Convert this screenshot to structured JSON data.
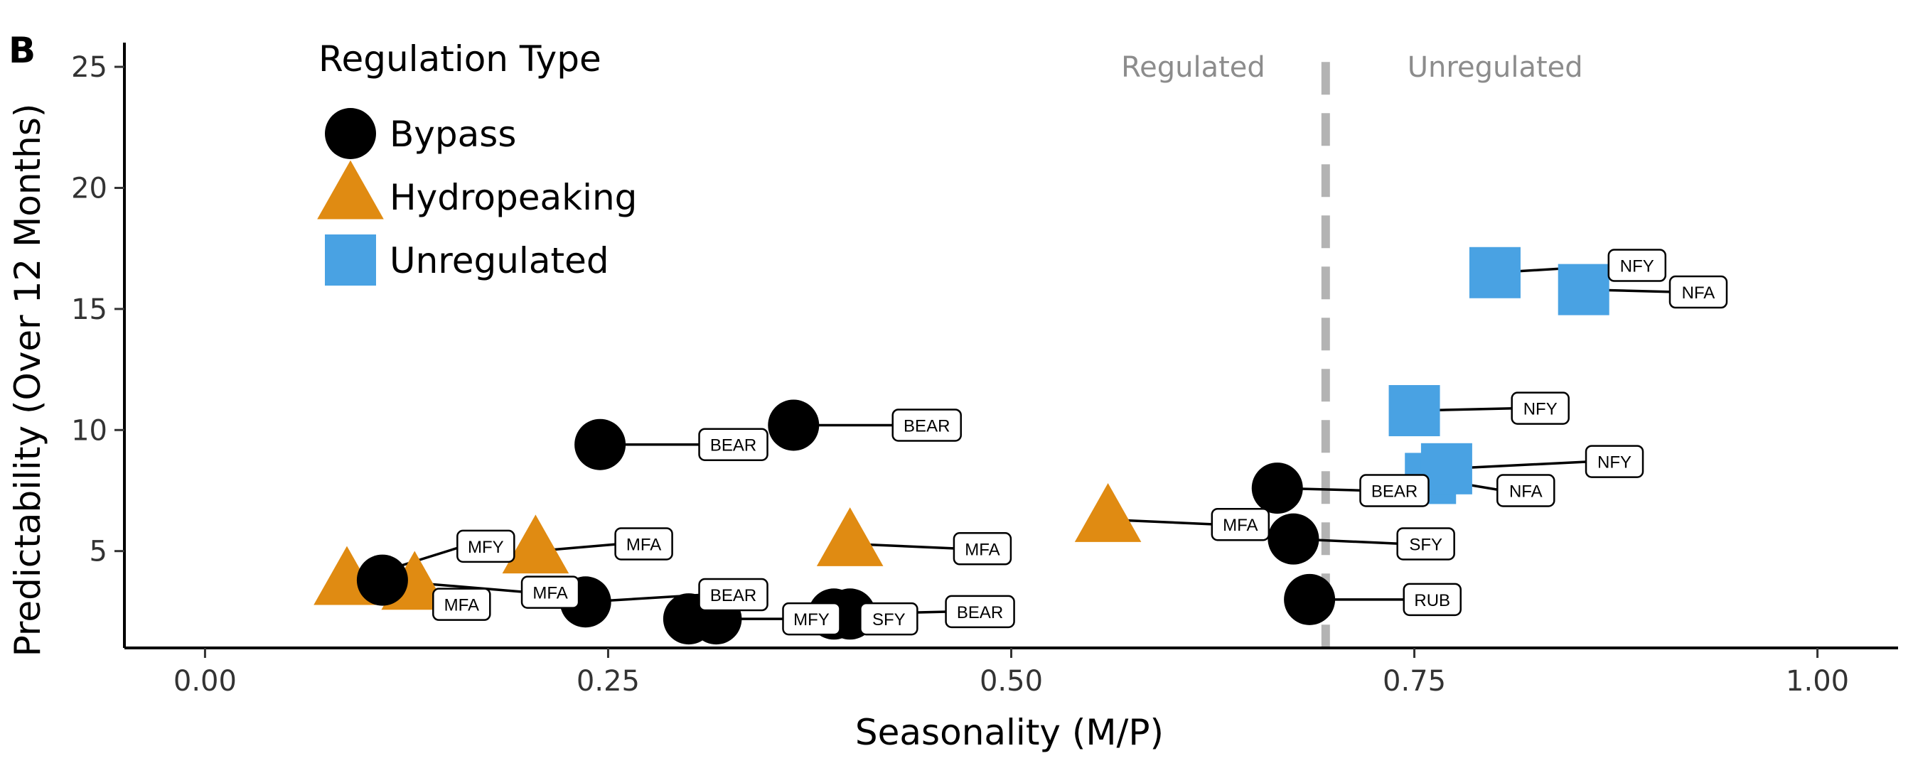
{
  "panel_label": "B",
  "colors": {
    "Bypass": "#000000",
    "Hydropeaking": "#E08B12",
    "Unregulated": "#49A2E3",
    "threshold_line": "#b3b3b3",
    "region_text": "#8c8c8c"
  },
  "chart_data": {
    "type": "scatter",
    "xlabel": "Seasonality (M/P)",
    "ylabel": "Predictability (Over 12 Months)",
    "xlim": [
      -0.05,
      1.05
    ],
    "ylim": [
      1,
      26
    ],
    "xticks": [
      0.0,
      0.25,
      0.5,
      0.75,
      1.0
    ],
    "xtick_labels": [
      "0.00",
      "0.25",
      "0.50",
      "0.75",
      "1.00"
    ],
    "yticks": [
      5,
      10,
      15,
      20,
      25
    ],
    "ytick_labels": [
      "5",
      "10",
      "15",
      "20",
      "25"
    ],
    "grid": false,
    "threshold_x": 0.695,
    "region_labels": {
      "left": "Regulated",
      "right": "Unregulated"
    },
    "legend": {
      "title": "Regulation Type",
      "position": "top-left",
      "entries": [
        {
          "label": "Bypass",
          "shape": "circle"
        },
        {
          "label": "Hydropeaking",
          "shape": "triangle"
        },
        {
          "label": "Unregulated",
          "shape": "square"
        }
      ]
    },
    "points": [
      {
        "x": 0.088,
        "y": 3.7,
        "type": "Hydropeaking",
        "label": "MFY",
        "lx": 0.16,
        "ly": 5.2
      },
      {
        "x": 0.13,
        "y": 3.5,
        "type": "Hydropeaking",
        "label": "MFA",
        "lx": 0.145,
        "ly": 2.8
      },
      {
        "x": 0.11,
        "y": 3.8,
        "type": "Bypass",
        "label": "MFA",
        "lx": 0.2,
        "ly": 3.3
      },
      {
        "x": 0.205,
        "y": 5.0,
        "type": "Hydropeaking",
        "label": "MFA",
        "lx": 0.258,
        "ly": 5.3
      },
      {
        "x": 0.236,
        "y": 2.9,
        "type": "Bypass",
        "label": "BEAR",
        "lx": 0.31,
        "ly": 3.2
      },
      {
        "x": 0.245,
        "y": 9.4,
        "type": "Bypass",
        "label": "BEAR",
        "lx": 0.31,
        "ly": 9.4
      },
      {
        "x": 0.3,
        "y": 2.2,
        "type": "Bypass",
        "label": null,
        "lx": null,
        "ly": null
      },
      {
        "x": 0.317,
        "y": 2.2,
        "type": "Bypass",
        "label": "MFY",
        "lx": 0.362,
        "ly": 2.2
      },
      {
        "x": 0.365,
        "y": 10.2,
        "type": "Bypass",
        "label": "BEAR",
        "lx": 0.43,
        "ly": 10.2
      },
      {
        "x": 0.39,
        "y": 2.4,
        "type": "Bypass",
        "label": "SFY",
        "lx": 0.41,
        "ly": 2.2
      },
      {
        "x": 0.4,
        "y": 5.3,
        "type": "Hydropeaking",
        "label": "MFA",
        "lx": 0.468,
        "ly": 5.1
      },
      {
        "x": 0.4,
        "y": 2.4,
        "type": "Bypass",
        "label": "BEAR",
        "lx": 0.463,
        "ly": 2.5
      },
      {
        "x": 0.56,
        "y": 6.3,
        "type": "Hydropeaking",
        "label": "MFA",
        "lx": 0.628,
        "ly": 6.1
      },
      {
        "x": 0.665,
        "y": 7.6,
        "type": "Bypass",
        "label": "BEAR",
        "lx": 0.72,
        "ly": 7.5
      },
      {
        "x": 0.675,
        "y": 5.5,
        "type": "Bypass",
        "label": "SFY",
        "lx": 0.743,
        "ly": 5.3
      },
      {
        "x": 0.685,
        "y": 3.0,
        "type": "Bypass",
        "label": "RUB",
        "lx": 0.747,
        "ly": 3.0
      },
      {
        "x": 0.75,
        "y": 10.8,
        "type": "Unregulated",
        "label": "NFY",
        "lx": 0.814,
        "ly": 10.9
      },
      {
        "x": 0.76,
        "y": 8.0,
        "type": "Unregulated",
        "label": "NFA",
        "lx": 0.805,
        "ly": 7.5
      },
      {
        "x": 0.77,
        "y": 8.4,
        "type": "Unregulated",
        "label": "NFY",
        "lx": 0.86,
        "ly": 8.7
      },
      {
        "x": 0.8,
        "y": 16.5,
        "type": "Unregulated",
        "label": "NFY",
        "lx": 0.874,
        "ly": 16.8
      },
      {
        "x": 0.855,
        "y": 15.8,
        "type": "Unregulated",
        "label": "NFA",
        "lx": 0.912,
        "ly": 15.7
      }
    ]
  }
}
